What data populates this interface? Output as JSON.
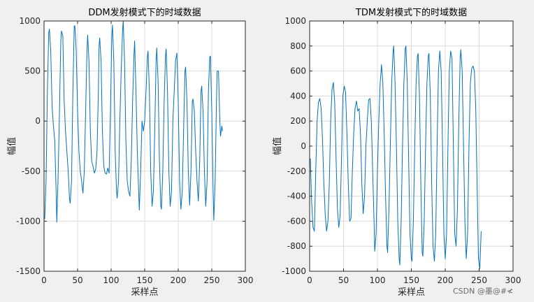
{
  "colors": {
    "figure_bg": "#f0f0f0",
    "axes_bg": "#ffffff",
    "axis": "#262626",
    "grid": "#dcdcdc",
    "series": "#0072bd"
  },
  "watermark": "CSDN @墨@#≮",
  "chart_data": [
    {
      "type": "line",
      "title": "DDM发射模式下的时域数据",
      "xlabel": "采样点",
      "ylabel": "幅值",
      "xlim": [
        0,
        300
      ],
      "ylim": [
        -1500,
        1000
      ],
      "xticks": [
        0,
        50,
        100,
        150,
        200,
        250,
        300
      ],
      "yticks": [
        -1500,
        -1000,
        -500,
        0,
        500,
        1000
      ],
      "grid": true,
      "series": [
        {
          "points": [
            [
              1,
              -980
            ],
            [
              3,
              -600
            ],
            [
              5,
              300
            ],
            [
              7,
              880
            ],
            [
              8,
              920
            ],
            [
              10,
              700
            ],
            [
              12,
              150
            ],
            [
              14,
              -50
            ],
            [
              16,
              -200
            ],
            [
              18,
              -700
            ],
            [
              19,
              -1010
            ],
            [
              21,
              -550
            ],
            [
              23,
              100
            ],
            [
              25,
              800
            ],
            [
              26,
              900
            ],
            [
              28,
              850
            ],
            [
              30,
              200
            ],
            [
              32,
              -100
            ],
            [
              34,
              -300
            ],
            [
              36,
              -500
            ],
            [
              38,
              -780
            ],
            [
              39,
              -820
            ],
            [
              41,
              -600
            ],
            [
              43,
              300
            ],
            [
              45,
              950
            ],
            [
              46,
              950
            ],
            [
              48,
              700
            ],
            [
              50,
              100
            ],
            [
              52,
              -300
            ],
            [
              54,
              -500
            ],
            [
              56,
              -600
            ],
            [
              58,
              -720
            ],
            [
              60,
              -500
            ],
            [
              62,
              100
            ],
            [
              64,
              700
            ],
            [
              65,
              860
            ],
            [
              67,
              600
            ],
            [
              69,
              -100
            ],
            [
              71,
              -400
            ],
            [
              73,
              -450
            ],
            [
              75,
              -520
            ],
            [
              77,
              -480
            ],
            [
              79,
              -300
            ],
            [
              81,
              300
            ],
            [
              82,
              750
            ],
            [
              83,
              830
            ],
            [
              85,
              600
            ],
            [
              87,
              -100
            ],
            [
              89,
              -450
            ],
            [
              91,
              -520
            ],
            [
              93,
              -530
            ],
            [
              95,
              -470
            ],
            [
              97,
              -520
            ],
            [
              99,
              100
            ],
            [
              101,
              850
            ],
            [
              102,
              960
            ],
            [
              104,
              600
            ],
            [
              106,
              -300
            ],
            [
              108,
              -700
            ],
            [
              109,
              -770
            ],
            [
              111,
              -600
            ],
            [
              113,
              0
            ],
            [
              115,
              500
            ],
            [
              117,
              900
            ],
            [
              118,
              1000
            ],
            [
              120,
              600
            ],
            [
              122,
              -200
            ],
            [
              124,
              -600
            ],
            [
              126,
              -700
            ],
            [
              128,
              -750
            ],
            [
              130,
              -400
            ],
            [
              132,
              200
            ],
            [
              134,
              650
            ],
            [
              135,
              800
            ],
            [
              137,
              300
            ],
            [
              139,
              -300
            ],
            [
              141,
              -700
            ],
            [
              142,
              -890
            ],
            [
              144,
              -500
            ],
            [
              146,
              0
            ],
            [
              148,
              -100
            ],
            [
              150,
              0
            ],
            [
              152,
              300
            ],
            [
              154,
              640
            ],
            [
              155,
              700
            ],
            [
              157,
              300
            ],
            [
              159,
              -500
            ],
            [
              161,
              -850
            ],
            [
              163,
              -700
            ],
            [
              165,
              -100
            ],
            [
              167,
              600
            ],
            [
              168,
              730
            ],
            [
              170,
              400
            ],
            [
              172,
              -400
            ],
            [
              174,
              -850
            ],
            [
              175,
              -880
            ],
            [
              177,
              -500
            ],
            [
              179,
              200
            ],
            [
              181,
              650
            ],
            [
              182,
              720
            ],
            [
              184,
              300
            ],
            [
              186,
              -500
            ],
            [
              188,
              -850
            ],
            [
              190,
              -700
            ],
            [
              192,
              0
            ],
            [
              194,
              300
            ],
            [
              196,
              600
            ],
            [
              198,
              680
            ],
            [
              200,
              200
            ],
            [
              202,
              -600
            ],
            [
              204,
              -880
            ],
            [
              206,
              -700
            ],
            [
              208,
              -100
            ],
            [
              210,
              500
            ],
            [
              211,
              540
            ],
            [
              213,
              200
            ],
            [
              215,
              -500
            ],
            [
              217,
              -840
            ],
            [
              219,
              -500
            ],
            [
              221,
              200
            ],
            [
              222,
              220
            ],
            [
              224,
              100
            ],
            [
              226,
              -300
            ],
            [
              228,
              -600
            ],
            [
              230,
              -800
            ],
            [
              232,
              -400
            ],
            [
              234,
              300
            ],
            [
              235,
              350
            ],
            [
              237,
              100
            ],
            [
              239,
              -500
            ],
            [
              241,
              -850
            ],
            [
              243,
              -600
            ],
            [
              245,
              300
            ],
            [
              247,
              640
            ],
            [
              248,
              650
            ],
            [
              250,
              100
            ],
            [
              252,
              -700
            ],
            [
              253,
              -990
            ],
            [
              255,
              -600
            ],
            [
              257,
              200
            ],
            [
              258,
              500
            ],
            [
              260,
              500
            ],
            [
              262,
              0
            ],
            [
              263,
              -150
            ],
            [
              265,
              -50
            ],
            [
              266,
              -100
            ]
          ]
        }
      ]
    },
    {
      "type": "line",
      "title": "TDM发射模式下的时域数据",
      "xlabel": "采样点",
      "ylabel": "幅值",
      "xlim": [
        0,
        300
      ],
      "ylim": [
        -1000,
        1000
      ],
      "xticks": [
        0,
        50,
        100,
        150,
        200,
        250,
        300
      ],
      "yticks": [
        -1000,
        -800,
        -600,
        -400,
        -200,
        0,
        200,
        400,
        600,
        800,
        1000
      ],
      "grid": true,
      "series": [
        {
          "points": [
            [
              1,
              -100
            ],
            [
              3,
              -450
            ],
            [
              5,
              -650
            ],
            [
              7,
              -680
            ],
            [
              9,
              -200
            ],
            [
              11,
              200
            ],
            [
              13,
              350
            ],
            [
              15,
              380
            ],
            [
              17,
              300
            ],
            [
              19,
              50
            ],
            [
              21,
              -300
            ],
            [
              23,
              -550
            ],
            [
              25,
              -680
            ],
            [
              27,
              -600
            ],
            [
              29,
              -300
            ],
            [
              31,
              200
            ],
            [
              33,
              450
            ],
            [
              35,
              510
            ],
            [
              37,
              350
            ],
            [
              39,
              -100
            ],
            [
              41,
              -500
            ],
            [
              43,
              -650
            ],
            [
              45,
              -550
            ],
            [
              47,
              -100
            ],
            [
              49,
              400
            ],
            [
              51,
              480
            ],
            [
              53,
              430
            ],
            [
              55,
              100
            ],
            [
              57,
              -300
            ],
            [
              59,
              -600
            ],
            [
              61,
              -580
            ],
            [
              63,
              -200
            ],
            [
              65,
              100
            ],
            [
              67,
              300
            ],
            [
              69,
              360
            ],
            [
              71,
              280
            ],
            [
              73,
              300
            ],
            [
              75,
              100
            ],
            [
              77,
              -300
            ],
            [
              79,
              -540
            ],
            [
              81,
              -400
            ],
            [
              83,
              0
            ],
            [
              85,
              200
            ],
            [
              87,
              370
            ],
            [
              89,
              380
            ],
            [
              91,
              200
            ],
            [
              93,
              -200
            ],
            [
              95,
              -600
            ],
            [
              96,
              -840
            ],
            [
              98,
              -700
            ],
            [
              100,
              -200
            ],
            [
              102,
              200
            ],
            [
              104,
              500
            ],
            [
              106,
              650
            ],
            [
              108,
              500
            ],
            [
              110,
              100
            ],
            [
              112,
              -400
            ],
            [
              114,
              -800
            ],
            [
              115,
              -850
            ],
            [
              117,
              -500
            ],
            [
              119,
              0
            ],
            [
              121,
              500
            ],
            [
              123,
              750
            ],
            [
              124,
              800
            ],
            [
              126,
              500
            ],
            [
              128,
              0
            ],
            [
              130,
              -600
            ],
            [
              132,
              -900
            ],
            [
              133,
              -950
            ],
            [
              135,
              -600
            ],
            [
              137,
              0
            ],
            [
              139,
              500
            ],
            [
              141,
              780
            ],
            [
              142,
              800
            ],
            [
              144,
              500
            ],
            [
              146,
              -100
            ],
            [
              148,
              -700
            ],
            [
              150,
              -900
            ],
            [
              151,
              -920
            ],
            [
              153,
              -600
            ],
            [
              155,
              0
            ],
            [
              157,
              500
            ],
            [
              159,
              720
            ],
            [
              160,
              740
            ],
            [
              162,
              400
            ],
            [
              164,
              -300
            ],
            [
              166,
              -850
            ],
            [
              167,
              -880
            ],
            [
              169,
              -600
            ],
            [
              171,
              0
            ],
            [
              173,
              500
            ],
            [
              175,
              720
            ],
            [
              176,
              740
            ],
            [
              178,
              400
            ],
            [
              180,
              -300
            ],
            [
              182,
              -800
            ],
            [
              184,
              -920
            ],
            [
              186,
              -700
            ],
            [
              188,
              0
            ],
            [
              190,
              600
            ],
            [
              192,
              760
            ],
            [
              194,
              600
            ],
            [
              196,
              0
            ],
            [
              198,
              -700
            ],
            [
              200,
              -900
            ],
            [
              202,
              -700
            ],
            [
              204,
              0
            ],
            [
              206,
              600
            ],
            [
              208,
              760
            ],
            [
              210,
              700
            ],
            [
              212,
              0
            ],
            [
              214,
              -700
            ],
            [
              216,
              -800
            ],
            [
              218,
              -500
            ],
            [
              220,
              200
            ],
            [
              222,
              700
            ],
            [
              223,
              770
            ],
            [
              225,
              600
            ],
            [
              227,
              0
            ],
            [
              229,
              -600
            ],
            [
              231,
              -900
            ],
            [
              233,
              -700
            ],
            [
              235,
              0
            ],
            [
              237,
              500
            ],
            [
              239,
              620
            ],
            [
              241,
              640
            ],
            [
              243,
              600
            ],
            [
              245,
              300
            ],
            [
              247,
              -300
            ],
            [
              249,
              -900
            ],
            [
              251,
              -980
            ],
            [
              253,
              -680
            ]
          ]
        }
      ]
    }
  ]
}
